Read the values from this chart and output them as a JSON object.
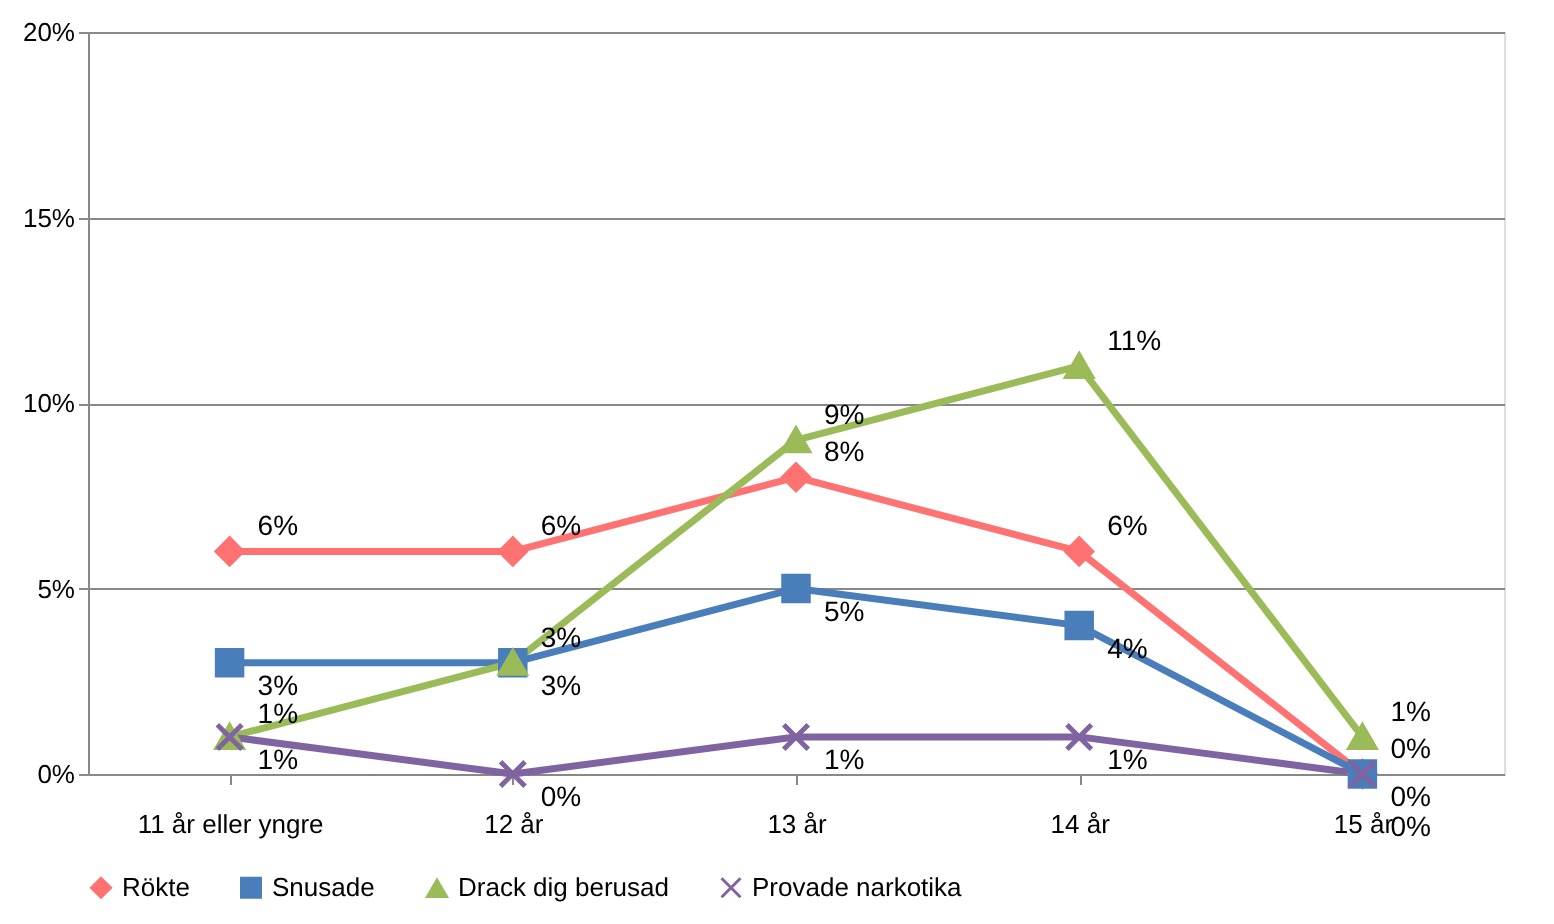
{
  "chart_data": {
    "type": "line",
    "categories": [
      "11 år eller yngre",
      "12 år",
      "13 år",
      "14 år",
      "15 år"
    ],
    "series": [
      {
        "name": "Rökte",
        "color": "#ff7272",
        "marker": "diamond",
        "values": [
          6,
          6,
          8,
          6,
          0
        ],
        "value_labels": [
          "6%",
          "6%",
          "8%",
          "6%",
          "0%"
        ]
      },
      {
        "name": "Snusade",
        "color": "#4a7ebb",
        "marker": "square",
        "values": [
          3,
          3,
          5,
          4,
          0
        ],
        "value_labels": [
          "3%",
          "3%",
          "5%",
          "4%",
          "0%"
        ]
      },
      {
        "name": "Drack dig berusad",
        "color": "#9bbb59",
        "marker": "triangle",
        "values": [
          1,
          3,
          9,
          11,
          1
        ],
        "value_labels": [
          "1%",
          "3%",
          "9%",
          "11%",
          "1%"
        ]
      },
      {
        "name": "Provade narkotika",
        "color": "#8064a2",
        "marker": "cross",
        "values": [
          1,
          0,
          1,
          1,
          0
        ],
        "value_labels": [
          "1%",
          "0%",
          "1%",
          "1%",
          "0%"
        ]
      }
    ],
    "ylim": [
      0,
      20
    ],
    "yticks": [
      {
        "value": 0,
        "label": "0%"
      },
      {
        "value": 5,
        "label": "5%"
      },
      {
        "value": 10,
        "label": "10%"
      },
      {
        "value": 15,
        "label": "15%"
      },
      {
        "value": 20,
        "label": "20%"
      }
    ],
    "grid": "y",
    "legend": "bottom",
    "data_labels": true
  }
}
